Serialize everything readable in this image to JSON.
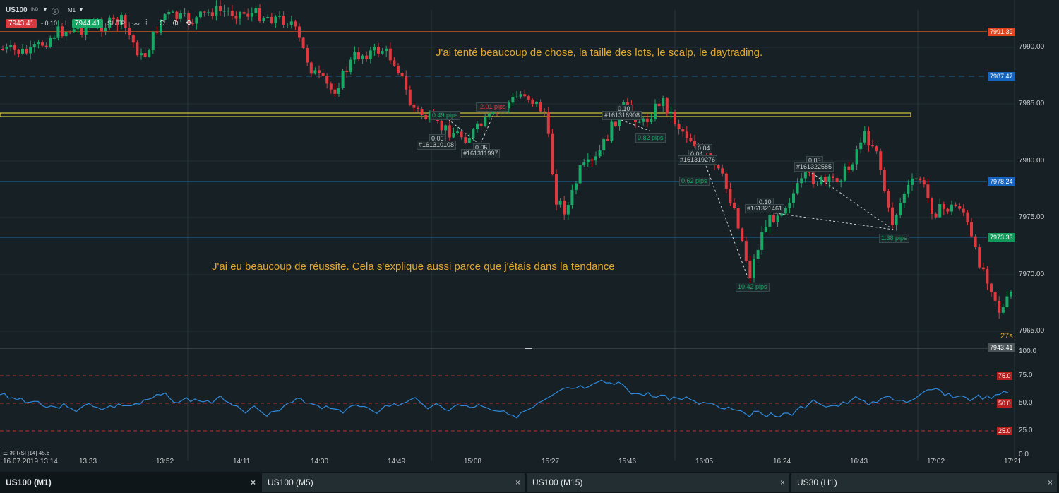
{
  "toolbar": {
    "symbol": "US100",
    "symbol_badge": "IND",
    "timeframe": "M1",
    "bid": "7943.41",
    "spread": "- 0.10",
    "plus": "+",
    "ask": "7944.41",
    "sltp": "SL/TP"
  },
  "annotations": {
    "top": "J'ai tenté beaucoup de chose, la taille des lots, le scalp, le daytrading.",
    "bottom": "J'ai eu beaucoup de réussite. Cela s'explique aussi parce que j'étais dans la tendance"
  },
  "price_axis": {
    "labels": [
      "7990.00",
      "7985.00",
      "7980.00",
      "7975.00",
      "7970.00",
      "7965.00"
    ],
    "levels": [
      {
        "value": "7991.39",
        "color": "#e0451f"
      },
      {
        "value": "7987.47",
        "color": "#1565c0"
      },
      {
        "value": "7978.24",
        "color": "#1565c0"
      },
      {
        "value": "7973.33",
        "color": "#119a5a"
      },
      {
        "value": "7943.41",
        "color": "#4a5356"
      }
    ],
    "countdown": "27s"
  },
  "trade_labels": [
    "0.49 pips",
    "0.05",
    "#161310108",
    "-2.01 pips",
    "0.05",
    "#161311997",
    "0.10",
    "#161316908",
    "0.82 pips",
    "0.04",
    "0.04",
    "#161319276",
    "0.62 pips",
    "0.10",
    "#161321461",
    "10.42 pips",
    "0.03",
    "#161322585",
    "1.38 pips"
  ],
  "rsi": {
    "label": "RSI [14] 45.6",
    "axis_labels": [
      "100.0",
      "75.0",
      "50.0",
      "25.0",
      "0.0"
    ],
    "levels": [
      "75.0",
      "50.0",
      "25.0"
    ]
  },
  "time_axis": [
    "16.07.2019 13:14",
    "13:33",
    "13:52",
    "14:11",
    "14:30",
    "14:49",
    "15:08",
    "15:27",
    "15:46",
    "16:05",
    "16:24",
    "16:43",
    "17:02",
    "17:21"
  ],
  "tabs": [
    {
      "label": "US100 (M1)",
      "active": true
    },
    {
      "label": "US100 (M5)",
      "active": false
    },
    {
      "label": "US100 (M15)",
      "active": false
    },
    {
      "label": "US30 (H1)",
      "active": false
    }
  ],
  "colors": {
    "up": "#1aa866",
    "down": "#e0383f",
    "background": "#172125",
    "grid": "#2a373c",
    "accent": "#e0a732"
  }
}
